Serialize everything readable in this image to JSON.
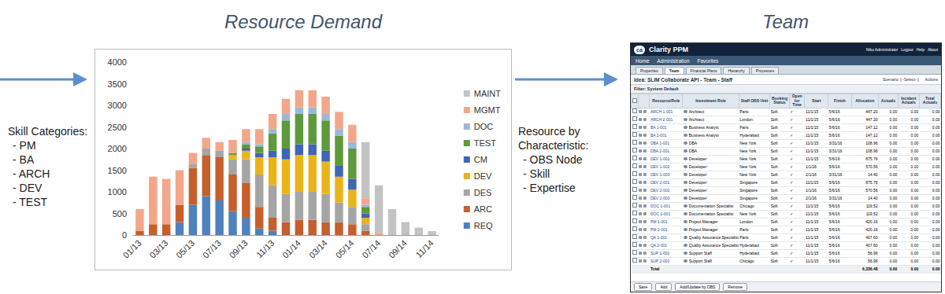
{
  "left_note": {
    "heading": "Skill Categories:",
    "items": [
      "- PM",
      "- BA",
      "- ARCH",
      "- DEV",
      "- TEST"
    ]
  },
  "middle_note": {
    "heading": "Resource by Characteristic:",
    "items": [
      "- OBS Node",
      "- Skill",
      "- Expertise"
    ]
  },
  "team_title": "Team",
  "chart_data": {
    "type": "bar",
    "title": "Resource Demand",
    "stacked": true,
    "grid": false,
    "legend": "right",
    "categories": [
      "01/13",
      null,
      "03/13",
      null,
      "05/13",
      null,
      "07/13",
      null,
      "09/13",
      null,
      "11/13",
      null,
      "01/14",
      null,
      "03/14",
      null,
      "05/14",
      null,
      "07/14",
      null,
      "09/14",
      null,
      "11/14"
    ],
    "ylim": [
      0,
      4000
    ],
    "yticks": [
      0,
      500,
      1000,
      1500,
      2000,
      2500,
      3000,
      3500,
      4000
    ],
    "series": [
      {
        "name": "REQ",
        "color": "#4f81bd",
        "values": [
          0,
          0,
          0,
          300,
          700,
          900,
          800,
          550,
          400,
          150,
          100,
          0,
          0,
          0,
          0,
          0,
          0,
          0,
          0,
          0,
          0,
          0,
          0
        ]
      },
      {
        "name": "ARC",
        "color": "#c65f2c",
        "values": [
          100,
          250,
          250,
          400,
          850,
          950,
          1000,
          850,
          800,
          500,
          300,
          300,
          350,
          350,
          300,
          300,
          250,
          100,
          0,
          0,
          0,
          0,
          0
        ]
      },
      {
        "name": "DES",
        "color": "#a5a5a5",
        "values": [
          0,
          0,
          0,
          0,
          100,
          150,
          150,
          350,
          550,
          750,
          750,
          650,
          650,
          650,
          650,
          450,
          400,
          150,
          0,
          0,
          0,
          0,
          0
        ]
      },
      {
        "name": "DEV",
        "color": "#eab418",
        "values": [
          0,
          0,
          0,
          0,
          0,
          0,
          0,
          100,
          200,
          400,
          650,
          800,
          850,
          850,
          750,
          600,
          400,
          150,
          0,
          0,
          0,
          0,
          0
        ]
      },
      {
        "name": "CM",
        "color": "#3f66b5",
        "values": [
          0,
          0,
          0,
          0,
          0,
          0,
          0,
          0,
          50,
          100,
          150,
          250,
          250,
          250,
          250,
          250,
          250,
          100,
          0,
          0,
          0,
          0,
          0
        ]
      },
      {
        "name": "TEST",
        "color": "#5e9a3c",
        "values": [
          0,
          0,
          0,
          0,
          0,
          0,
          0,
          50,
          100,
          150,
          400,
          650,
          700,
          700,
          700,
          700,
          700,
          150,
          0,
          0,
          0,
          0,
          0
        ]
      },
      {
        "name": "DOC",
        "color": "#9bb7db",
        "values": [
          0,
          0,
          0,
          0,
          0,
          0,
          0,
          0,
          50,
          50,
          100,
          150,
          150,
          150,
          150,
          150,
          150,
          50,
          0,
          0,
          0,
          0,
          0
        ]
      },
      {
        "name": "MGMT",
        "color": "#f3a68a",
        "values": [
          500,
          1100,
          1050,
          800,
          250,
          250,
          200,
          300,
          300,
          350,
          350,
          350,
          400,
          400,
          400,
          400,
          400,
          150,
          50,
          0,
          0,
          0,
          0
        ]
      },
      {
        "name": "MAINT",
        "color": "#c3c3c3",
        "values": [
          0,
          0,
          0,
          0,
          0,
          0,
          0,
          0,
          0,
          0,
          0,
          0,
          0,
          0,
          0,
          0,
          0,
          1300,
          1100,
          600,
          300,
          170,
          90
        ]
      }
    ]
  },
  "screenshot": {
    "logo": "ca",
    "app": "Clarity PPM",
    "user_links": [
      "Niku Administrator",
      "Logout",
      "Help",
      "About"
    ],
    "nav": [
      "Home",
      "Administration",
      "Favorites"
    ],
    "tabs": [
      "Properties",
      "Team",
      "Financial Plans",
      "Hierarchy",
      "Processes"
    ],
    "active_tab": "Team",
    "page_title": "Idea: SLIM Collaborate API - Team - Staff",
    "page_controls": [
      "Scenario: [--Select--]",
      "Actions"
    ],
    "filter": "Filter: System Default",
    "table": {
      "columns": [
        "Resource/Role",
        "Investment Role",
        "Staff OBS Unit",
        "Booking Status",
        "Open for Time",
        "Start",
        "Finish",
        "Allocation",
        "Actuals",
        "Incident Actuals",
        "Total Actuals"
      ],
      "rows": [
        [
          "ARCH 1-001",
          "Architect",
          "Paris",
          "Soft",
          "✓",
          "11/1/15",
          "5/6/16",
          "447.20",
          "0.00",
          "0.00",
          "0.00"
        ],
        [
          "ARCH 2-001",
          "Architect",
          "London",
          "Soft",
          "✓",
          "11/1/15",
          "5/6/16",
          "447.20",
          "0.00",
          "0.00",
          "0.00"
        ],
        [
          "BA 1-001",
          "Business Analyst",
          "Paris",
          "Soft",
          "✓",
          "11/1/15",
          "5/6/16",
          "147.12",
          "0.00",
          "0.00",
          "0.00"
        ],
        [
          "BA 2-001",
          "Business Analyst",
          "Hyderabad",
          "Soft",
          "✓",
          "11/1/15",
          "5/6/16",
          "147.12",
          "0.00",
          "0.00",
          "0.00"
        ],
        [
          "DBA 1-001",
          "DBA",
          "New York",
          "Soft",
          "✓",
          "11/1/15",
          "3/31/16",
          "108.96",
          "0.00",
          "0.00",
          "0.00"
        ],
        [
          "DBA 2-001",
          "DBA",
          "New York",
          "Soft",
          "✓",
          "11/1/15",
          "3/31/16",
          "108.96",
          "0.00",
          "0.00",
          "0.00"
        ],
        [
          "DEV 1-001",
          "Developer",
          "New York",
          "Soft",
          "✓",
          "11/1/15",
          "5/6/16",
          "875.76",
          "0.00",
          "0.00",
          "0.00"
        ],
        [
          "DEV 1-002",
          "Developer",
          "New York",
          "Soft",
          "✓",
          "1/1/16",
          "5/6/16",
          "570.56",
          "0.00",
          "0.00",
          "0.00"
        ],
        [
          "DEV 1-003",
          "Developer",
          "New York",
          "Soft",
          "✓",
          "2/1/16",
          "3/31/16",
          "14.40",
          "0.00",
          "0.00",
          "0.00"
        ],
        [
          "DEV 2-001",
          "Developer",
          "Singapore",
          "Soft",
          "✓",
          "11/1/15",
          "5/6/16",
          "875.76",
          "0.00",
          "0.00",
          "0.00"
        ],
        [
          "DEV 2-002",
          "Developer",
          "Singapore",
          "Soft",
          "✓",
          "1/1/16",
          "5/6/16",
          "570.56",
          "0.00",
          "0.00",
          "0.00"
        ],
        [
          "DEV 2-003",
          "Developer",
          "Singapore",
          "Soft",
          "✓",
          "2/1/16",
          "3/31/16",
          "14.40",
          "0.00",
          "0.00",
          "0.00"
        ],
        [
          "DOC 1-001",
          "Documentation Specialist",
          "Chicago",
          "Soft",
          "✓",
          "11/1/15",
          "5/6/16",
          "119.52",
          "0.00",
          "0.00",
          "0.00"
        ],
        [
          "DOC 2-001",
          "Documentation Specialist",
          "New York",
          "Soft",
          "✓",
          "11/1/15",
          "5/6/16",
          "119.52",
          "0.00",
          "0.00",
          "0.00"
        ],
        [
          "PM 1-001",
          "Project Manager",
          "London",
          "Soft",
          "✓",
          "11/1/15",
          "5/6/16",
          "420.16",
          "0.00",
          "0.00",
          "0.00"
        ],
        [
          "PM 2-001",
          "Project Manager",
          "Paris",
          "Soft",
          "✓",
          "11/1/15",
          "5/6/16",
          "420.16",
          "0.00",
          "0.00",
          "0.00"
        ],
        [
          "QA 1-001",
          "Quality Assurance Specialist",
          "Paris",
          "Soft",
          "✓",
          "11/1/15",
          "5/6/16",
          "407.60",
          "0.00",
          "0.00",
          "0.00"
        ],
        [
          "QA 2-001",
          "Quality Assurance Specialist",
          "Hyderabad",
          "Soft",
          "✓",
          "11/1/15",
          "5/6/16",
          "407.60",
          "0.00",
          "0.00",
          "0.00"
        ],
        [
          "SUP 1-001",
          "Support Staff",
          "Hyderabad",
          "Soft",
          "✓",
          "11/1/15",
          "5/6/16",
          "56.96",
          "0.00",
          "0.00",
          "0.00"
        ],
        [
          "SUP 2-001",
          "Support Staff",
          "Chicago",
          "Soft",
          "✓",
          "11/1/15",
          "5/6/16",
          "56.96",
          "0.00",
          "0.00",
          "0.00"
        ]
      ],
      "total": {
        "label": "Total",
        "values": [
          "6,336.48",
          "0.00",
          "0.00",
          "0.00"
        ]
      }
    },
    "buttons": [
      "Save",
      "Add",
      "Add/Update by OBS",
      "Remove"
    ]
  }
}
